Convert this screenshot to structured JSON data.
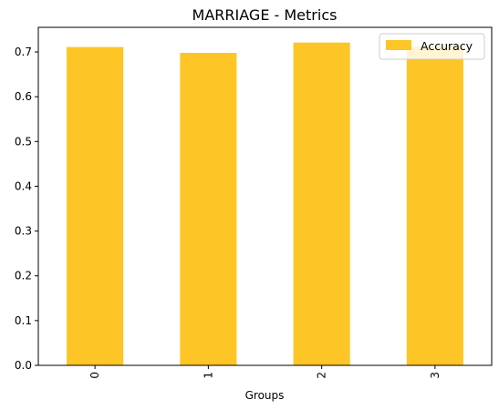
{
  "chart_data": {
    "type": "bar",
    "title": "MARRIAGE - Metrics",
    "xlabel": "Groups",
    "ylabel": "",
    "categories": [
      "0",
      "1",
      "2",
      "3"
    ],
    "series": [
      {
        "name": "Accuracy",
        "values": [
          0.711,
          0.698,
          0.721,
          0.713
        ]
      }
    ],
    "ylim": [
      0,
      0.755
    ],
    "yticks": [
      0.0,
      0.1,
      0.2,
      0.3,
      0.4,
      0.5,
      0.6,
      0.7
    ],
    "ytick_labels": [
      "0.0",
      "0.1",
      "0.2",
      "0.3",
      "0.4",
      "0.5",
      "0.6",
      "0.7"
    ],
    "x_tick_rotation": 90,
    "grid": false,
    "legend_position": "top-right",
    "bar_color": "#fdc626"
  }
}
